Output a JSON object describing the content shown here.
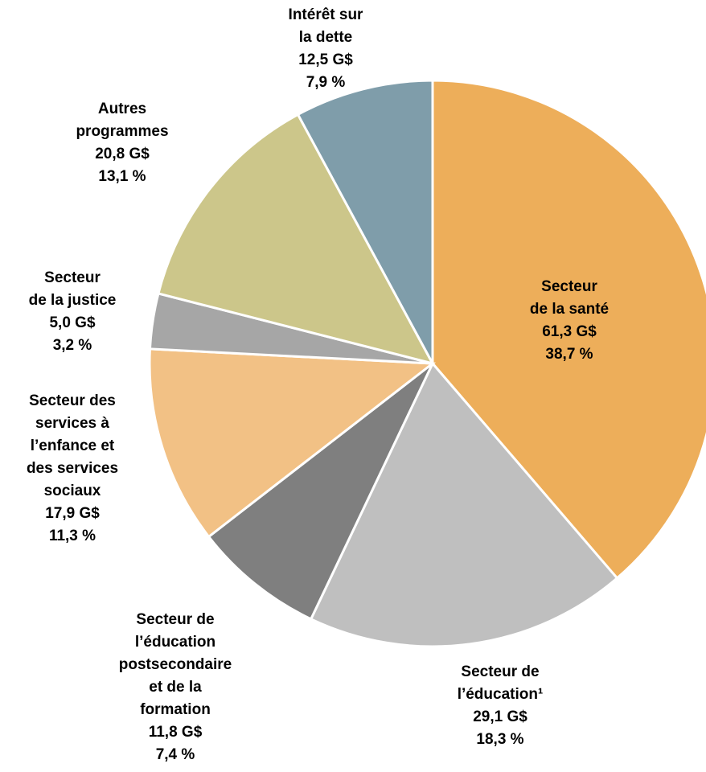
{
  "chart_data": {
    "type": "pie",
    "categories": [
      "Secteur\nde la santé",
      "Secteur de\nl’éducation¹",
      "Secteur de\nl’éducation\npostsecondaire\net de la\nformation",
      "Secteur des\nservices à\nl’enfance et\ndes services\nsociaux",
      "Secteur\nde la justice",
      "Autres\nprogrammes",
      "Intérêt sur\nla dette"
    ],
    "values": [
      61.3,
      29.1,
      11.8,
      17.9,
      5.0,
      20.8,
      12.5
    ],
    "value_labels": [
      "61,3 G$",
      "29,1 G$",
      "11,8 G$",
      "17,9 G$",
      "5,0 G$",
      "20,8 G$",
      "12,5 G$"
    ],
    "percentages": [
      38.7,
      18.3,
      7.4,
      11.3,
      3.2,
      13.1,
      7.9
    ],
    "percentage_labels": [
      "38,7 %",
      "18,3 %",
      "7,4 %",
      "11,3 %",
      "3,2 %",
      "13,1 %",
      "7,9 %"
    ],
    "colors": [
      "#edae5a",
      "#bfbfbf",
      "#7f7f7f",
      "#f2c185",
      "#a6a6a6",
      "#ccc68a",
      "#7f9daa"
    ]
  }
}
